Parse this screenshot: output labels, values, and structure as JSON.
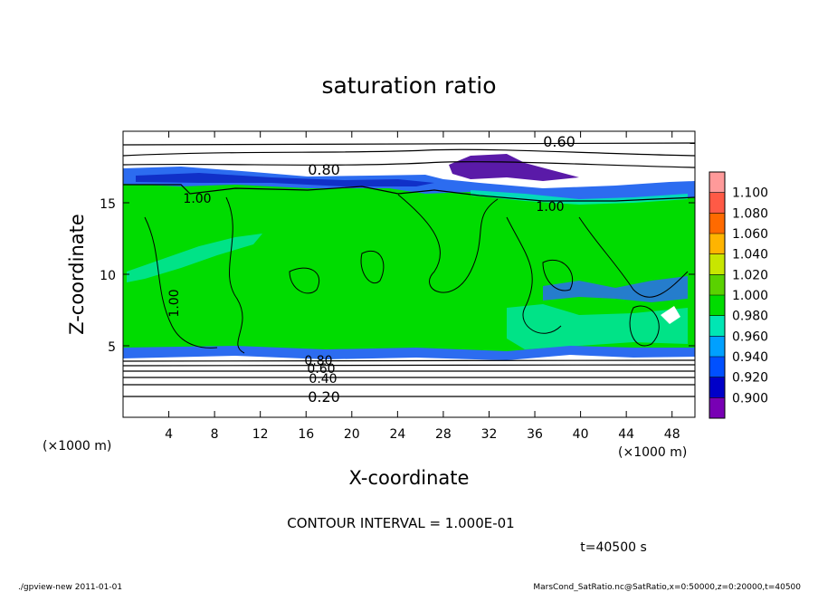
{
  "chart_data": {
    "type": "heatmap",
    "title": "saturation ratio",
    "xlabel": "X-coordinate",
    "ylabel": "Z-coordinate",
    "x_unit": "(×1000 m)",
    "y_unit": "(×1000 m)",
    "xlim": [
      0,
      50
    ],
    "ylim": [
      0,
      20
    ],
    "xticks": [
      4,
      8,
      12,
      16,
      20,
      24,
      28,
      32,
      36,
      40,
      44,
      48
    ],
    "yticks": [
      5,
      10,
      15
    ],
    "colorbar": {
      "levels": [
        "1.100",
        "1.080",
        "1.060",
        "1.040",
        "1.020",
        "1.000",
        "0.980",
        "0.960",
        "0.940",
        "0.920",
        "0.900"
      ],
      "colors": [
        "#ff9a9a",
        "#ff5a46",
        "#ff6a00",
        "#ffb400",
        "#c8e600",
        "#5ad200",
        "#00dc00",
        "#00e6b4",
        "#00a0ff",
        "#0050ff",
        "#0000c8",
        "#7800b4"
      ]
    },
    "contour_labels": [
      "0.60",
      "0.80",
      "1.00",
      "1.00",
      "1.00",
      "0.80",
      "0.60",
      "0.40",
      "0.20"
    ],
    "contour_interval_text": "CONTOUR INTERVAL = 1.000E-01",
    "time_text": "t=40500 s",
    "footer_left": "./gpview-new   2011-01-01",
    "footer_right": "MarsCond_SatRatio.nc@SatRatio,x=0:50000,z=0:20000,t=40500"
  }
}
